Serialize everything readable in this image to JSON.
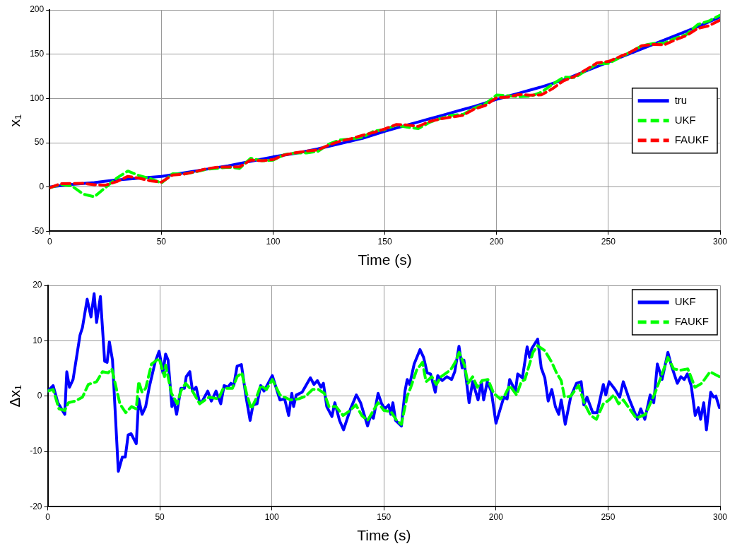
{
  "chart_data": [
    {
      "type": "line",
      "xlabel": "Time (s)",
      "ylabel": "x₁",
      "xlim": [
        0,
        300
      ],
      "xticks": [
        0,
        50,
        100,
        150,
        200,
        250,
        300
      ],
      "ylim": [
        -50,
        200
      ],
      "yticks": [
        -50,
        0,
        50,
        100,
        150,
        200
      ],
      "grid": true,
      "legend": "right",
      "marker": "none",
      "x": [
        0,
        5,
        10,
        15,
        20,
        25,
        30,
        35,
        40,
        45,
        50,
        55,
        60,
        65,
        70,
        75,
        80,
        85,
        90,
        95,
        100,
        105,
        110,
        115,
        120,
        125,
        130,
        135,
        140,
        145,
        150,
        155,
        160,
        165,
        170,
        175,
        180,
        185,
        190,
        195,
        200,
        205,
        210,
        215,
        220,
        225,
        230,
        235,
        240,
        245,
        250,
        255,
        260,
        265,
        270,
        275,
        280,
        285,
        290,
        295,
        300
      ],
      "series": [
        {
          "name": "tru",
          "color": "#0000ff",
          "line_style": "solid",
          "values": [
            0,
            1.5,
            3,
            4,
            5,
            6.5,
            8,
            9,
            10,
            11,
            12,
            14,
            16,
            18,
            20,
            22,
            24,
            26.5,
            29,
            31.5,
            34,
            36,
            38,
            40.5,
            43,
            46,
            49,
            52,
            55,
            59,
            63,
            66.5,
            70,
            73.5,
            77,
            80.5,
            84,
            87.5,
            91,
            95,
            99,
            102.5,
            106,
            109.5,
            113,
            117,
            121,
            126,
            131,
            136,
            141,
            146,
            151,
            156,
            161,
            166,
            171,
            176,
            181,
            186.5,
            192
          ]
        },
        {
          "name": "UKF",
          "color": "#00ff00",
          "line_style": "dashed",
          "values": [
            -0.9,
            3,
            1,
            -8,
            -11,
            -0.5,
            10,
            18,
            13,
            9.5,
            4.5,
            15,
            14.6,
            17,
            20,
            21.1,
            22.4,
            21,
            32.5,
            29.6,
            30.3,
            36.5,
            38.5,
            38.5,
            40.2,
            48.5,
            53.2,
            54.3,
            56.2,
            63,
            64.8,
            70,
            67.5,
            66,
            73,
            77.5,
            81,
            82,
            89,
            94,
            103.9,
            103,
            102,
            102.5,
            107,
            116,
            124,
            123.6,
            131.5,
            139,
            139.5,
            146,
            152.5,
            159.5,
            162,
            162.5,
            168,
            172.2,
            183.5,
            187.5,
            194
          ]
        },
        {
          "name": "FAUKF",
          "color": "#ff0000",
          "line_style": "dashed",
          "values": [
            -0.9,
            3.8,
            4,
            4.2,
            2.6,
            2.1,
            6,
            12,
            10,
            7,
            5.5,
            13.5,
            14.5,
            17.2,
            20.5,
            22.4,
            22.6,
            22.7,
            30.5,
            29.6,
            31,
            36.2,
            38.6,
            40.5,
            41.8,
            47.5,
            51.8,
            54.6,
            58.4,
            61.6,
            65.6,
            70.5,
            70,
            68.5,
            74,
            77,
            79,
            81,
            88,
            92.1,
            100.9,
            101.5,
            104.5,
            103.7,
            104,
            111,
            120,
            125,
            132.5,
            140.2,
            141.7,
            147,
            152.5,
            159.6,
            161,
            160.5,
            166.2,
            171.1,
            179,
            182.1,
            188.5
          ]
        }
      ]
    },
    {
      "type": "line",
      "xlabel": "Time (s)",
      "ylabel": "Δx₁",
      "xlim": [
        0,
        300
      ],
      "xticks": [
        0,
        50,
        100,
        150,
        200,
        250,
        300
      ],
      "ylim": [
        -20,
        20
      ],
      "yticks": [
        -20,
        -10,
        0,
        10,
        20
      ],
      "grid": true,
      "legend": "top right",
      "marker": "none",
      "series": [
        {
          "name": "UKF",
          "color": "#0000ff",
          "line_style": "solid",
          "x": [
            0,
            2.4,
            4.5,
            7.6,
            8.5,
            9.7,
            11.3,
            14.4,
            15.5,
            17.6,
            19.3,
            20.7,
            21.8,
            23.5,
            25.4,
            26.5,
            27.5,
            28.9,
            31.5,
            33.3,
            34.6,
            35.9,
            37.2,
            39.5,
            40.6,
            42.1,
            43.7,
            45.3,
            47.9,
            49.7,
            51.4,
            52.6,
            53.7,
            55.4,
            56.1,
            57.5,
            59.4,
            61,
            61.8,
            63.4,
            64.6,
            66.2,
            67.8,
            69,
            71.4,
            73,
            75.1,
            77.2,
            78.7,
            80.3,
            81.7,
            83,
            84.5,
            86.4,
            88.5,
            90.3,
            91.6,
            93.4,
            95,
            96.5,
            100.2,
            103.6,
            105.7,
            107.5,
            108.9,
            109.7,
            110.9,
            113.5,
            117.2,
            118.8,
            120.3,
            121.9,
            123,
            124.5,
            126.8,
            128.1,
            130.2,
            132,
            135.1,
            137.7,
            139.6,
            142.7,
            144.1,
            145.3,
            147.4,
            149,
            150.5,
            152.1,
            153.1,
            154,
            155.2,
            157.8,
            159.4,
            160.4,
            161.5,
            163.5,
            166.1,
            167.7,
            169.3,
            170.8,
            172.9,
            174,
            176,
            178.1,
            180.2,
            181.6,
            183.5,
            184.9,
            185.7,
            188,
            189.6,
            192,
            193.5,
            194.5,
            196.1,
            197.9,
            200,
            201.4,
            203.5,
            205,
            206.1,
            208.7,
            209.7,
            211.8,
            213.9,
            215,
            216,
            218.6,
            220.2,
            221.8,
            223.3,
            224.9,
            226.5,
            228,
            229.1,
            230.9,
            233.3,
            235.9,
            238,
            239.2,
            240.6,
            243.2,
            245.1,
            247.9,
            249,
            250.5,
            253.1,
            255.2,
            256.8,
            259.4,
            263.1,
            264.6,
            266.4,
            268.8,
            270.4,
            272,
            274.1,
            276.7,
            278.2,
            280.9,
            282.5,
            284,
            285.4,
            287.1,
            288.9,
            290.3,
            291.3,
            292.7,
            293.9,
            295.8,
            297.1,
            298.1,
            299.7
          ],
          "values": [
            0.9,
            1.9,
            -1.2,
            -3.3,
            4.4,
            1.6,
            3,
            11,
            12.4,
            17.5,
            14.3,
            18.5,
            13.3,
            18,
            6.3,
            6.1,
            9.8,
            6.5,
            -13.6,
            -11,
            -11,
            -7,
            -6.8,
            -8.6,
            -0.5,
            -3.3,
            -1.9,
            1.6,
            6.1,
            8.1,
            4.2,
            7.6,
            6.5,
            -1.9,
            -0.5,
            -3.3,
            1.4,
            1.4,
            3.5,
            4.4,
            0.9,
            1.6,
            -1.2,
            -0.9,
            0.9,
            -0.9,
            0.9,
            -1.4,
            1.9,
            1.6,
            2.3,
            1.9,
            5.4,
            5.7,
            -0.2,
            -4.4,
            -1.6,
            -1.4,
            1.9,
            0.9,
            3.7,
            -0.7,
            -0.5,
            -3.5,
            0.5,
            -1.9,
            0.2,
            0.7,
            3.3,
            2.1,
            2.8,
            1.6,
            2.3,
            -1.9,
            -3.7,
            -1.2,
            -4.4,
            -6.1,
            -2.3,
            0.2,
            -1.2,
            -5.4,
            -3.5,
            -4,
            0.5,
            -1.4,
            -2.3,
            -1.6,
            -3.3,
            -1.2,
            -4.4,
            -5.4,
            0.9,
            3,
            2.1,
            5.8,
            8.4,
            7,
            4.2,
            4,
            0.7,
            3.7,
            2.8,
            3.5,
            3,
            4.4,
            9,
            5.1,
            6.5,
            -1.2,
            2.6,
            -0.7,
            2.6,
            -0.7,
            2.6,
            0.9,
            -4.9,
            -3,
            -0.2,
            -0.5,
            3,
            0.9,
            4,
            3.3,
            8.9,
            7,
            8.6,
            10.3,
            5.1,
            3.3,
            -0.9,
            1.2,
            -1.9,
            -3.3,
            -0.7,
            -5.1,
            -0.2,
            2.3,
            2.6,
            -1.6,
            -0.2,
            -3,
            -3,
            2.1,
            0.2,
            2.6,
            1.2,
            -0.2,
            2.6,
            -0.5,
            -4.2,
            -2.3,
            -4.2,
            0.2,
            -1.2,
            5.8,
            3,
            7.9,
            5.6,
            2.3,
            3.5,
            3,
            4,
            1.9,
            -3.5,
            -2.1,
            -4.2,
            -1.2,
            -6.1,
            0.7,
            -0.2,
            0,
            -2.1
          ]
        },
        {
          "name": "FAUKF",
          "color": "#00ff00",
          "line_style": "dashed",
          "x": [
            0,
            2.4,
            5,
            7.6,
            9.2,
            12.3,
            15.5,
            18.1,
            21.8,
            24.4,
            27,
            28.6,
            30.6,
            32.2,
            34.8,
            37.4,
            39.5,
            40.6,
            42.1,
            43.7,
            46.3,
            49.7,
            52.1,
            52.6,
            55.2,
            57.8,
            59.4,
            61.5,
            64.6,
            67.8,
            72,
            76.2,
            78.3,
            82.4,
            84.5,
            86.6,
            88.7,
            90.8,
            92.9,
            95,
            97.6,
            100.2,
            103.6,
            105.7,
            108.3,
            112,
            115.1,
            118.2,
            120.8,
            123.4,
            125.5,
            128.6,
            131.8,
            134.9,
            137.5,
            140.1,
            142.7,
            145.3,
            147.4,
            150,
            153.1,
            155.7,
            157.8,
            160.4,
            162,
            164.6,
            167.2,
            168.8,
            171.4,
            173.4,
            175.5,
            179.7,
            181.8,
            183.6,
            185.9,
            187.5,
            189.6,
            191.7,
            193.8,
            196.4,
            199,
            201.9,
            204,
            206.1,
            209.2,
            211.3,
            212.9,
            215,
            216.5,
            218.6,
            221.8,
            224.9,
            227,
            229.1,
            230.6,
            233.3,
            236.9,
            239.5,
            242.2,
            244.8,
            247.9,
            250.5,
            252.6,
            254.7,
            256.8,
            258.9,
            262.6,
            266.7,
            270.9,
            273.5,
            276.7,
            279.3,
            282.5,
            285.6,
            288.8,
            291.8,
            295.5,
            299.7
          ],
          "values": [
            0.9,
            1.2,
            -2.3,
            -2.6,
            -1.2,
            -0.9,
            -0.2,
            2.1,
            2.6,
            4.4,
            4.2,
            4.9,
            1.4,
            -1.4,
            -3,
            -1.9,
            -2.3,
            2.6,
            0.7,
            1.4,
            5.8,
            6.8,
            3.5,
            5.6,
            0.5,
            -1.4,
            0.9,
            2.3,
            0.9,
            -1.4,
            -0.2,
            -0.5,
            1.4,
            1.4,
            3.5,
            4.2,
            0.5,
            -2.3,
            -0.5,
            1.9,
            1.2,
            3,
            0.2,
            -0.2,
            -0.7,
            -0.5,
            0,
            1.2,
            1.2,
            0.5,
            -1.9,
            -1.9,
            -3.5,
            -2.6,
            -1.6,
            -3.5,
            -4.4,
            -2.6,
            -1.2,
            -2.6,
            -2.8,
            -4.4,
            -5.1,
            0,
            1.6,
            4.7,
            6.1,
            2.6,
            3.5,
            2.1,
            3.5,
            4.7,
            6.1,
            7.9,
            5.6,
            2.3,
            3.5,
            1.6,
            2.8,
            3,
            0.5,
            -0.5,
            0.2,
            1.9,
            0.2,
            2.6,
            3,
            5.8,
            7.9,
            9.1,
            8.2,
            6.1,
            4.2,
            2.8,
            -0.2,
            0,
            1.9,
            -1.4,
            -3.5,
            -4.2,
            -1.4,
            -0.7,
            0.2,
            -1.4,
            -0.7,
            -1.9,
            -4,
            -3.3,
            0.5,
            3.3,
            7,
            4.9,
            4.7,
            4.9,
            1.6,
            2.3,
            4.4,
            3.5
          ]
        }
      ]
    }
  ]
}
